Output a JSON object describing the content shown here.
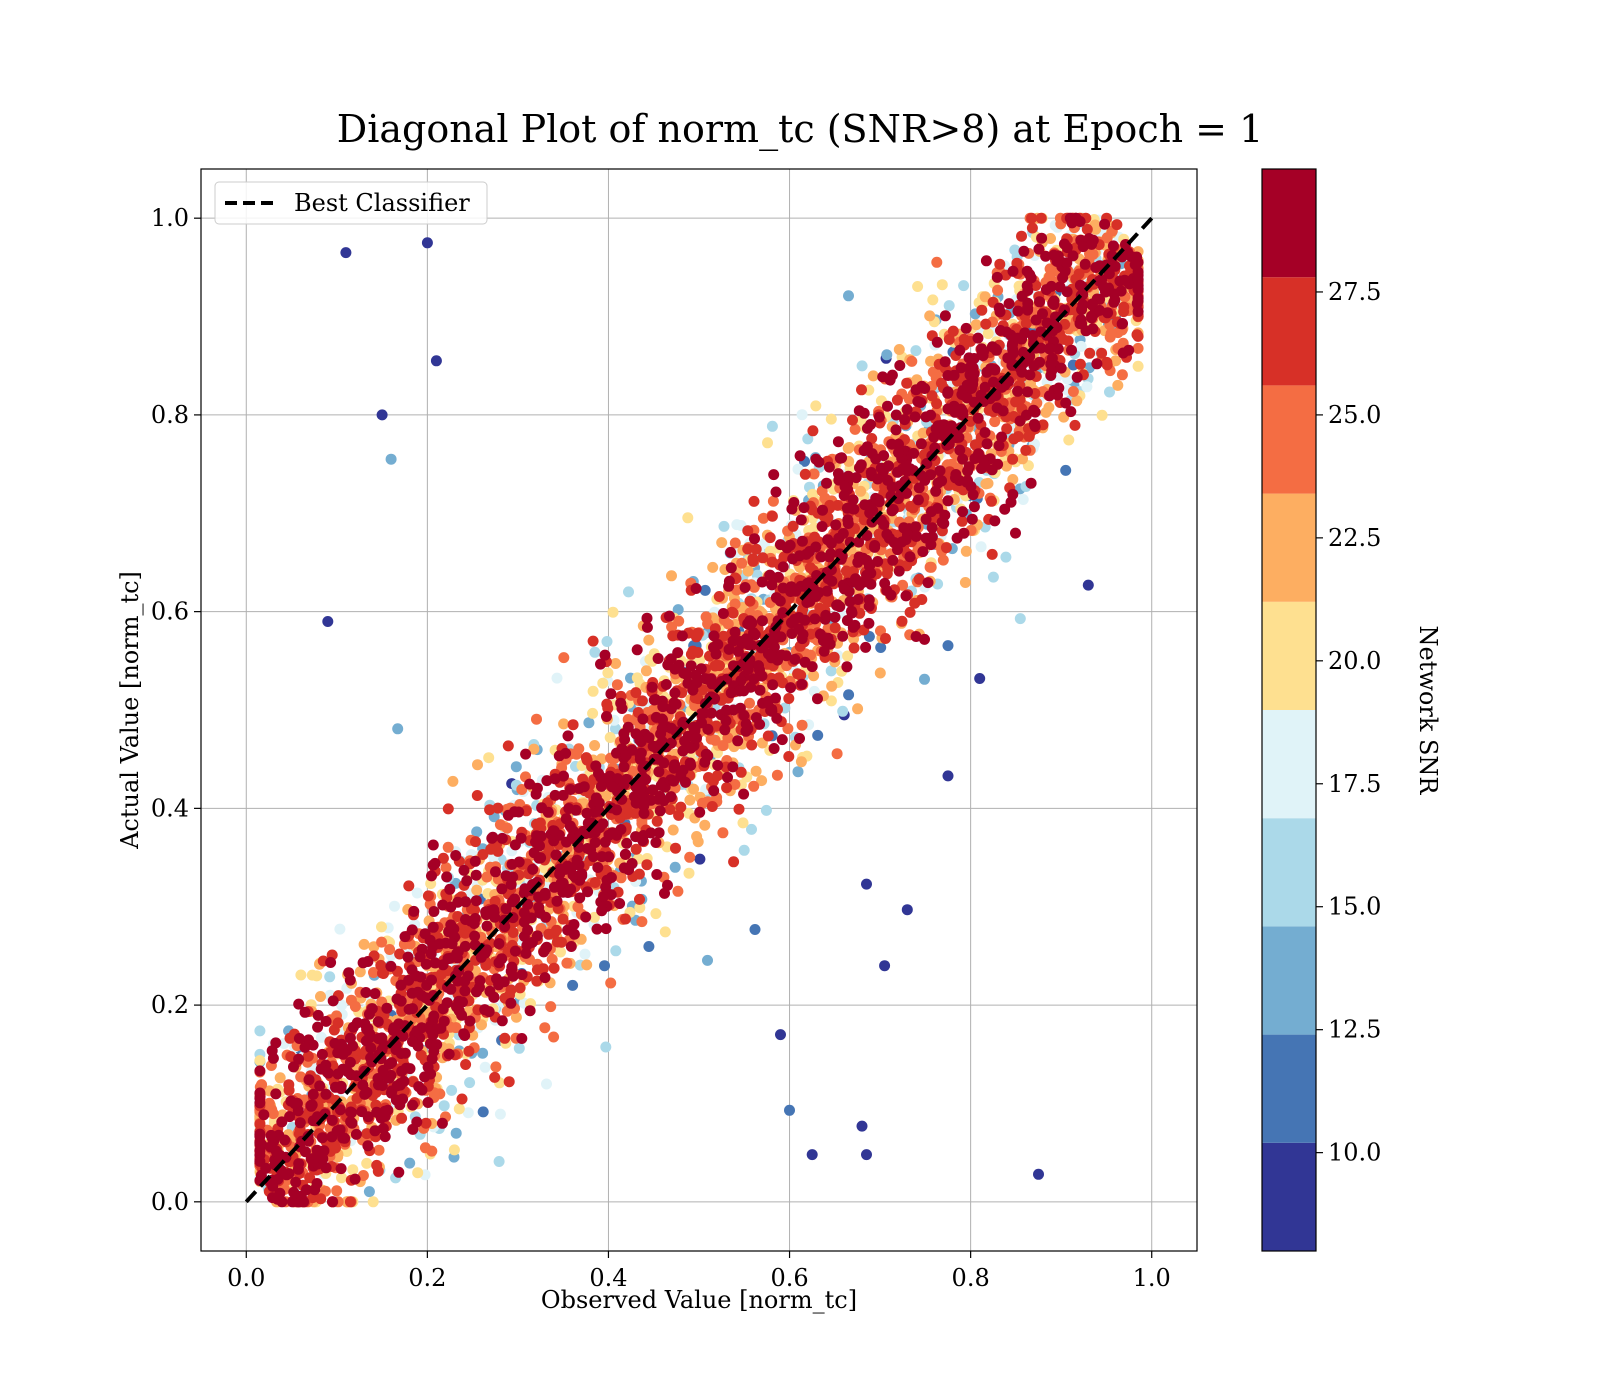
{
  "chart_data": {
    "type": "scatter",
    "title": "Diagonal Plot of norm_tc (SNR>8) at Epoch = 1",
    "xlabel": "Observed Value [norm_tc]",
    "ylabel": "Actual Value [norm_tc]",
    "xlim": [
      -0.05,
      1.05
    ],
    "ylim": [
      -0.05,
      1.05
    ],
    "xticks": [
      "0.0",
      "0.2",
      "0.4",
      "0.6",
      "0.8",
      "1.0"
    ],
    "yticks": [
      "0.0",
      "0.2",
      "0.4",
      "0.6",
      "0.8",
      "1.0"
    ],
    "grid": true,
    "legend": {
      "position": "upper-left",
      "entries": [
        "Best Classifier"
      ]
    },
    "reference_line": {
      "name": "Best Classifier",
      "style": "dashed",
      "color": "#000000",
      "x": [
        0,
        1
      ],
      "y": [
        0,
        1
      ]
    },
    "colorbar": {
      "label": "Network SNR",
      "range": [
        8,
        30
      ],
      "ticks": [
        "10.0",
        "12.5",
        "15.0",
        "17.5",
        "20.0",
        "22.5",
        "25.0",
        "27.5"
      ],
      "tick_values": [
        10.0,
        12.5,
        15.0,
        17.5,
        20.0,
        22.5,
        25.0,
        27.5
      ],
      "levels": [
        8,
        10.2,
        12.4,
        14.6,
        16.8,
        19.0,
        21.2,
        23.4,
        25.6,
        27.8,
        30
      ],
      "colors": [
        "#313695",
        "#4575b4",
        "#74add1",
        "#abd9e9",
        "#e0f3f8",
        "#fee090",
        "#fdae61",
        "#f46d43",
        "#d73027",
        "#a50026"
      ]
    },
    "points_description": "dense band of high-SNR points along y = x; lower-SNR points scattered further from the diagonal",
    "outlier_points": [
      {
        "x": 0.11,
        "y": 0.965,
        "snr": 9
      },
      {
        "x": 0.2,
        "y": 0.975,
        "snr": 9
      },
      {
        "x": 0.21,
        "y": 0.855,
        "snr": 9
      },
      {
        "x": 0.15,
        "y": 0.8,
        "snr": 9
      },
      {
        "x": 0.09,
        "y": 0.59,
        "snr": 9
      },
      {
        "x": 0.16,
        "y": 0.755,
        "snr": 14
      },
      {
        "x": 0.875,
        "y": 0.028,
        "snr": 9
      },
      {
        "x": 0.705,
        "y": 0.24,
        "snr": 9
      },
      {
        "x": 0.73,
        "y": 0.297,
        "snr": 9
      },
      {
        "x": 0.685,
        "y": 0.323,
        "snr": 9
      },
      {
        "x": 0.68,
        "y": 0.077,
        "snr": 9
      },
      {
        "x": 0.685,
        "y": 0.048,
        "snr": 9
      },
      {
        "x": 0.625,
        "y": 0.048,
        "snr": 9
      },
      {
        "x": 0.59,
        "y": 0.17,
        "snr": 9
      },
      {
        "x": 0.81,
        "y": 0.532,
        "snr": 9
      },
      {
        "x": 0.775,
        "y": 0.433,
        "snr": 9
      },
      {
        "x": 0.93,
        "y": 0.627,
        "snr": 9
      },
      {
        "x": 0.6,
        "y": 0.093,
        "snr": 12
      }
    ]
  }
}
